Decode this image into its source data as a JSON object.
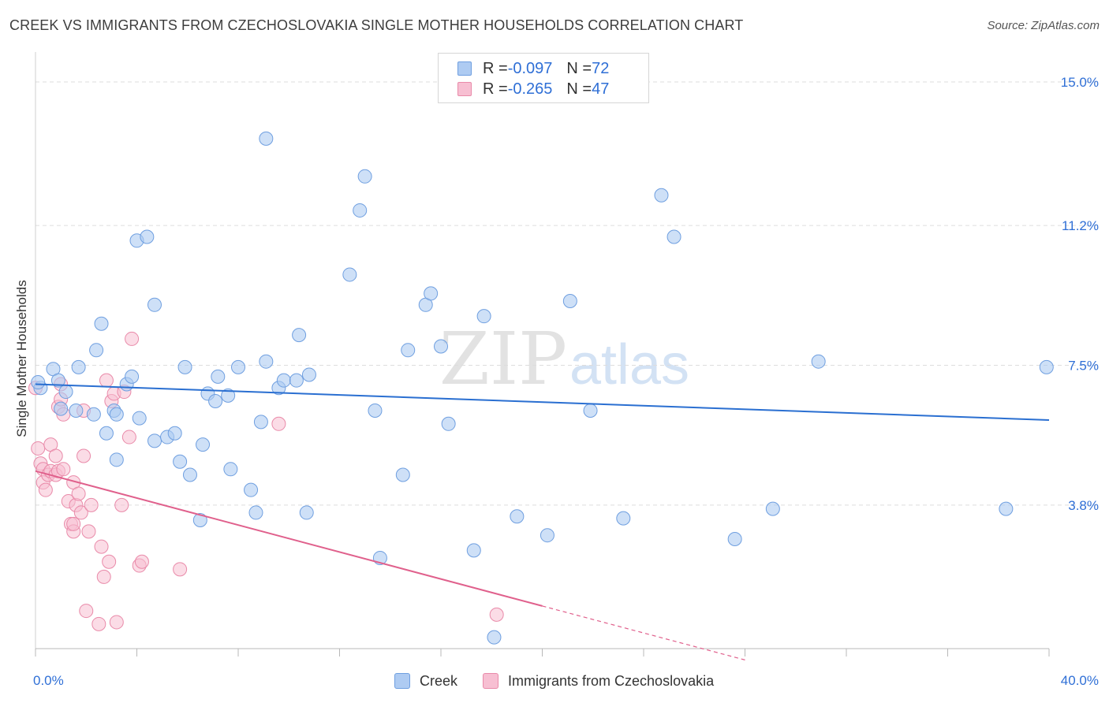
{
  "header": {
    "title": "CREEK VS IMMIGRANTS FROM CZECHOSLOVAKIA SINGLE MOTHER HOUSEHOLDS CORRELATION CHART",
    "source": "Source: ZipAtlas.com"
  },
  "watermark": {
    "zip": "ZIP",
    "atlas": "atlas"
  },
  "legend": {
    "rows": [
      {
        "r_label": "R = ",
        "r_value": "-0.097",
        "n_label": "N = ",
        "n_value": "72"
      },
      {
        "r_label": "R = ",
        "r_value": "-0.265",
        "n_label": "N = ",
        "n_value": "47"
      }
    ]
  },
  "chart_data": {
    "type": "scatter",
    "title": "CREEK VS IMMIGRANTS FROM CZECHOSLOVAKIA SINGLE MOTHER HOUSEHOLDS CORRELATION CHART",
    "xlabel": "",
    "ylabel": "Single Mother Households",
    "xlim": [
      0,
      40
    ],
    "ylim": [
      0,
      15.5
    ],
    "x_tick_labels": [
      "0.0%",
      "40.0%"
    ],
    "y_ticks": [
      3.8,
      7.5,
      11.2,
      15.0
    ],
    "y_tick_labels": [
      "3.8%",
      "7.5%",
      "11.2%",
      "15.0%"
    ],
    "grid": "dashed horizontal",
    "legend_position": "top-center",
    "colors": {
      "creek_fill": "#aecbf2",
      "creek_stroke": "#6f9fe0",
      "creek_line": "#2a6fd1",
      "czech_fill": "#f7bfd2",
      "czech_stroke": "#e98aa9",
      "czech_line": "#e0608c",
      "axis_text": "#2f6fd6",
      "grid": "#dddddd"
    },
    "series": [
      {
        "name": "Creek",
        "r": -0.097,
        "n": 72,
        "trend": {
          "x": [
            0,
            40
          ],
          "y": [
            7.0,
            6.05
          ],
          "solid_to": 40
        },
        "points": [
          [
            0.2,
            6.9
          ],
          [
            0.7,
            7.4
          ],
          [
            0.9,
            7.1
          ],
          [
            1.2,
            6.8
          ],
          [
            1.6,
            6.3
          ],
          [
            2.3,
            6.2
          ],
          [
            1.7,
            7.45
          ],
          [
            2.4,
            7.9
          ],
          [
            2.6,
            8.6
          ],
          [
            3.1,
            6.3
          ],
          [
            3.2,
            6.2
          ],
          [
            2.8,
            5.7
          ],
          [
            3.2,
            5.0
          ],
          [
            3.6,
            7.0
          ],
          [
            3.8,
            7.2
          ],
          [
            4.1,
            6.1
          ],
          [
            4.0,
            10.8
          ],
          [
            4.4,
            10.9
          ],
          [
            4.7,
            9.1
          ],
          [
            4.7,
            5.5
          ],
          [
            5.2,
            5.6
          ],
          [
            5.5,
            5.7
          ],
          [
            5.7,
            4.95
          ],
          [
            6.1,
            4.6
          ],
          [
            5.9,
            7.45
          ],
          [
            6.5,
            3.4
          ],
          [
            6.6,
            5.4
          ],
          [
            6.8,
            6.75
          ],
          [
            7.1,
            6.55
          ],
          [
            7.2,
            7.2
          ],
          [
            7.6,
            6.7
          ],
          [
            7.7,
            4.75
          ],
          [
            8.0,
            7.45
          ],
          [
            8.5,
            4.2
          ],
          [
            8.7,
            3.6
          ],
          [
            8.9,
            6.0
          ],
          [
            9.1,
            7.6
          ],
          [
            9.1,
            13.5
          ],
          [
            9.6,
            6.9
          ],
          [
            9.8,
            7.1
          ],
          [
            10.3,
            7.1
          ],
          [
            10.4,
            8.3
          ],
          [
            10.8,
            7.25
          ],
          [
            10.7,
            3.6
          ],
          [
            12.4,
            9.9
          ],
          [
            12.8,
            11.6
          ],
          [
            13.0,
            12.5
          ],
          [
            13.6,
            2.4
          ],
          [
            13.4,
            6.3
          ],
          [
            14.5,
            4.6
          ],
          [
            14.7,
            7.9
          ],
          [
            15.4,
            9.1
          ],
          [
            15.6,
            9.4
          ],
          [
            16.0,
            8.0
          ],
          [
            16.3,
            5.95
          ],
          [
            17.3,
            2.6
          ],
          [
            17.7,
            8.8
          ],
          [
            18.1,
            0.3
          ],
          [
            19.0,
            3.5
          ],
          [
            20.2,
            3.0
          ],
          [
            21.1,
            9.2
          ],
          [
            21.9,
            6.3
          ],
          [
            23.2,
            3.45
          ],
          [
            24.7,
            12.0
          ],
          [
            25.2,
            10.9
          ],
          [
            27.6,
            2.9
          ],
          [
            29.1,
            3.7
          ],
          [
            30.9,
            7.6
          ],
          [
            38.3,
            3.7
          ],
          [
            39.9,
            7.45
          ],
          [
            0.1,
            7.05
          ],
          [
            1.0,
            6.35
          ]
        ]
      },
      {
        "name": "Immigrants from Czechoslovakia",
        "r": -0.265,
        "n": 47,
        "trend": {
          "x": [
            0,
            28
          ],
          "y": [
            4.7,
            -0.3
          ],
          "solid_to": 20
        },
        "points": [
          [
            0.1,
            5.3
          ],
          [
            0.2,
            4.9
          ],
          [
            0.3,
            4.4
          ],
          [
            0.3,
            4.75
          ],
          [
            0.4,
            4.2
          ],
          [
            0.5,
            4.6
          ],
          [
            0.6,
            4.7
          ],
          [
            0.6,
            5.4
          ],
          [
            0.8,
            5.1
          ],
          [
            0.8,
            4.6
          ],
          [
            0.9,
            4.7
          ],
          [
            0.9,
            6.4
          ],
          [
            1.0,
            7.0
          ],
          [
            1.0,
            6.6
          ],
          [
            1.1,
            4.75
          ],
          [
            1.1,
            6.2
          ],
          [
            1.3,
            3.9
          ],
          [
            1.4,
            3.3
          ],
          [
            1.5,
            3.1
          ],
          [
            1.5,
            3.3
          ],
          [
            1.5,
            4.4
          ],
          [
            1.6,
            3.8
          ],
          [
            1.7,
            4.1
          ],
          [
            1.8,
            3.6
          ],
          [
            1.9,
            5.1
          ],
          [
            1.9,
            6.3
          ],
          [
            2.0,
            1.0
          ],
          [
            2.1,
            3.1
          ],
          [
            2.2,
            3.8
          ],
          [
            2.5,
            0.65
          ],
          [
            2.6,
            2.7
          ],
          [
            2.7,
            1.9
          ],
          [
            2.8,
            7.1
          ],
          [
            2.9,
            2.3
          ],
          [
            3.0,
            6.55
          ],
          [
            3.1,
            6.75
          ],
          [
            3.2,
            0.7
          ],
          [
            3.4,
            3.8
          ],
          [
            3.5,
            6.8
          ],
          [
            3.7,
            5.6
          ],
          [
            3.8,
            8.2
          ],
          [
            4.1,
            2.2
          ],
          [
            4.2,
            2.3
          ],
          [
            5.7,
            2.1
          ],
          [
            9.6,
            5.95
          ],
          [
            18.2,
            0.9
          ],
          [
            0.0,
            6.9
          ]
        ]
      }
    ]
  },
  "bottom_legend": {
    "items": [
      {
        "label": "Creek"
      },
      {
        "label": "Immigrants from Czechoslovakia"
      }
    ]
  }
}
